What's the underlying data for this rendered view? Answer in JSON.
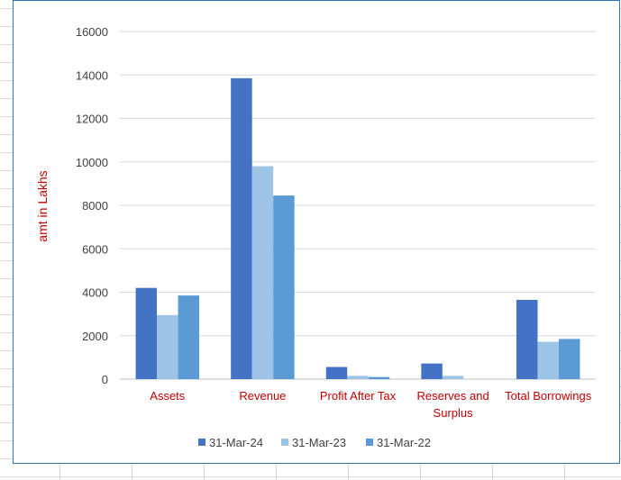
{
  "chart_data": {
    "type": "bar",
    "title": "",
    "xlabel": "",
    "ylabel": "amt in Lakhs",
    "categories": [
      "Assets",
      "Revenue",
      "Profit After Tax",
      "Reserves and Surplus",
      "Total Borrowings"
    ],
    "series": [
      {
        "name": "31-Mar-24",
        "color": "#4472c4",
        "values": [
          4200,
          13850,
          560,
          720,
          3650
        ]
      },
      {
        "name": "31-Mar-23",
        "color": "#9dc3e6",
        "values": [
          2950,
          9800,
          150,
          150,
          1720
        ]
      },
      {
        "name": "31-Mar-22",
        "color": "#5b9bd5",
        "values": [
          3850,
          8450,
          100,
          0,
          1850
        ]
      }
    ],
    "ylim": [
      0,
      16000
    ],
    "yticks": [
      0,
      2000,
      4000,
      6000,
      8000,
      10000,
      12000,
      14000,
      16000
    ],
    "grid": true,
    "legend_position": "bottom"
  }
}
